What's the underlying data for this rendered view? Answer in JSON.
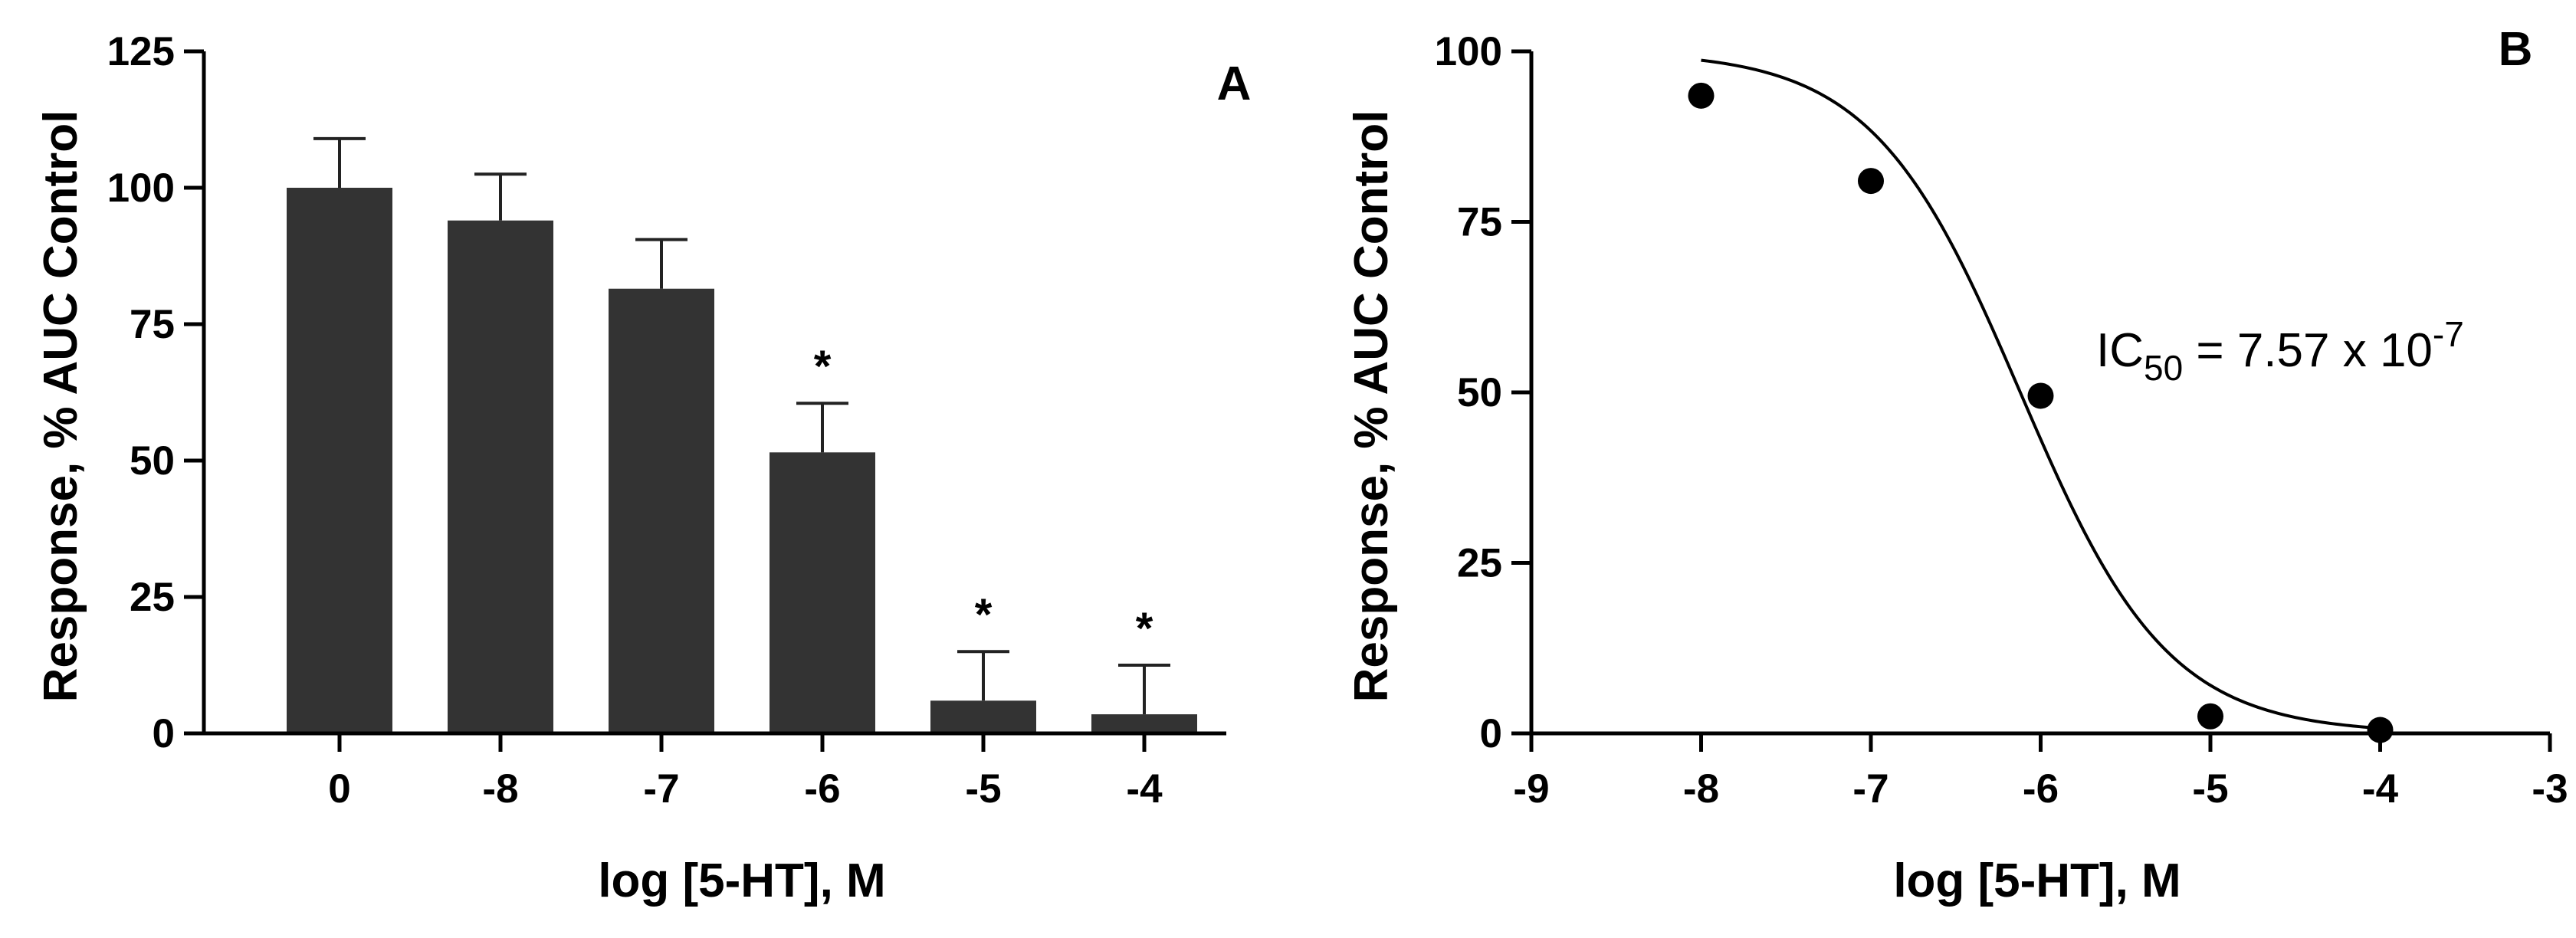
{
  "chart_data": [
    {
      "panel": "A",
      "type": "bar",
      "xlabel": "log [5-HT], M",
      "ylabel": "Response, % AUC Control",
      "ylim": [
        0,
        125
      ],
      "yticks": [
        "0",
        "25",
        "50",
        "75",
        "100",
        "125"
      ],
      "categories": [
        "0",
        "-8",
        "-7",
        "-6",
        "-5",
        "-4"
      ],
      "values": [
        100,
        94,
        81.5,
        51.5,
        6,
        3.5
      ],
      "errors": [
        9,
        8.5,
        9,
        9,
        9,
        9
      ],
      "significance": [
        "",
        "",
        "",
        "*",
        "*",
        "*"
      ],
      "bar_color": "#333333",
      "grid": false
    },
    {
      "panel": "B",
      "type": "scatter",
      "xlabel": "log [5-HT], M",
      "ylabel": "Response, % AUC Control",
      "xlim": [
        -9,
        -3
      ],
      "ylim": [
        0,
        100
      ],
      "xticks": [
        "-9",
        "-8",
        "-7",
        "-6",
        "-5",
        "-4",
        "-3"
      ],
      "yticks": [
        "0",
        "25",
        "50",
        "75",
        "100"
      ],
      "points": [
        {
          "x": -8,
          "y": 93.5
        },
        {
          "x": -7,
          "y": 81
        },
        {
          "x": -6,
          "y": 49.5
        },
        {
          "x": -5,
          "y": 2.5
        },
        {
          "x": -4,
          "y": 0.5
        }
      ],
      "fit": {
        "model": "sigmoidal dose-response",
        "top": 100,
        "bottom": 0,
        "logIC50": -6.12,
        "hill": -1,
        "x_range": [
          -8,
          -4
        ]
      },
      "annotation": {
        "prefix": "IC",
        "subscript": "50",
        "middle": " = 7.57 x 10",
        "superscript": "-7"
      },
      "grid": false
    }
  ]
}
